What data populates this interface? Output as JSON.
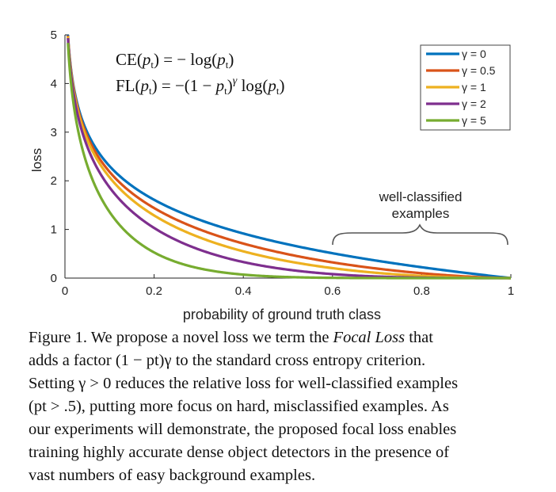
{
  "chart_data": {
    "type": "line",
    "title": "",
    "xlabel": "probability of ground truth class",
    "ylabel": "loss",
    "xlim": [
      0,
      1
    ],
    "ylim": [
      0,
      5
    ],
    "xticks": [
      "0",
      "0.2",
      "0.4",
      "0.6",
      "0.8",
      "1"
    ],
    "yticks": [
      "0",
      "1",
      "2",
      "3",
      "4",
      "5"
    ],
    "legend_position": "top-right",
    "series": [
      {
        "name": "γ = 0",
        "gamma": 0,
        "color": "#0072BD"
      },
      {
        "name": "γ = 0.5",
        "gamma": 0.5,
        "color": "#D95319"
      },
      {
        "name": "γ = 1",
        "gamma": 1,
        "color": "#EDB120"
      },
      {
        "name": "γ = 2",
        "gamma": 2,
        "color": "#7E2F8E"
      },
      {
        "name": "γ = 5",
        "gamma": 5,
        "color": "#77AC30"
      }
    ],
    "formula_ce": "CE(pt) = − log(pt)",
    "formula_fl": "FL(pt) = −(1 − pt)γ log(pt)",
    "annotation": {
      "line1": "well-classified",
      "line2": "examples",
      "x_range": [
        0.6,
        1
      ]
    }
  },
  "caption": {
    "line1_a": "Figure 1. We propose a novel loss we term the ",
    "line1_em": "Focal Loss",
    "line1_b": " that",
    "line2": "adds a factor (1 − pt)γ to the standard cross entropy criterion.",
    "line3": "Setting γ > 0 reduces the relative loss for well-classified examples",
    "line4": "(pt > .5), putting more focus on hard, misclassified examples. As",
    "line5": "our experiments will demonstrate, the proposed focal loss enables",
    "line6": "training highly accurate dense object detectors in the presence of",
    "line7": "vast numbers of easy background examples."
  }
}
